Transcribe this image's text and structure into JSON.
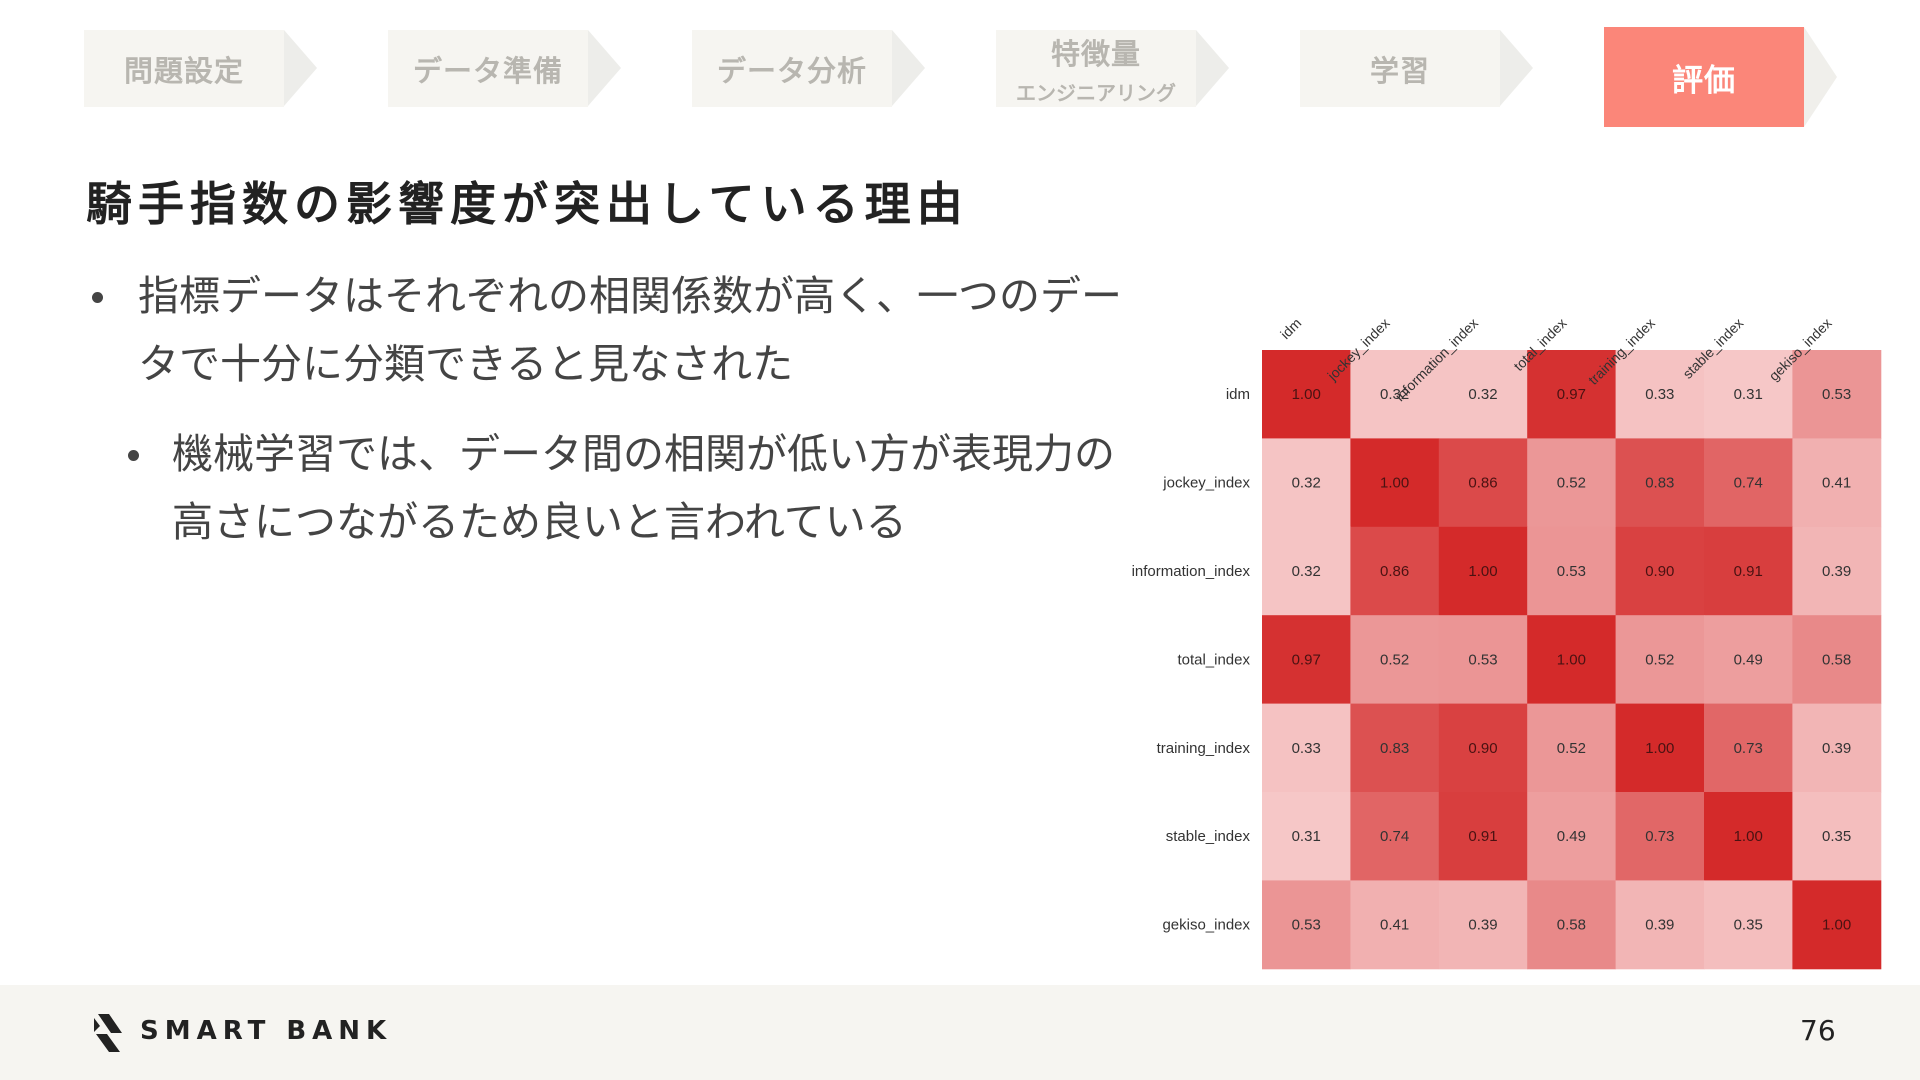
{
  "steps": [
    {
      "label": "問題設定",
      "sub": ""
    },
    {
      "label": "データ準備",
      "sub": ""
    },
    {
      "label": "データ分析",
      "sub": ""
    },
    {
      "label": "特徴量",
      "sub": "エンジニアリング"
    },
    {
      "label": "学習",
      "sub": ""
    },
    {
      "label": "評価",
      "sub": ""
    }
  ],
  "active_step": 5,
  "heading": "騎手指数の影響度が突出している理由",
  "bullets": {
    "level1": "指標データはそれぞれの相関係数が高く、一つのデータで十分に分類できると見なされた",
    "level2": "機械学習では、データ間の相関が低い方が表現力の高さにつながるため良いと言われている"
  },
  "chart_data": {
    "type": "heatmap",
    "labels": [
      "idm",
      "jockey_index",
      "information_index",
      "total_index",
      "training_index",
      "stable_index",
      "gekiso_index"
    ],
    "values": [
      [
        1.0,
        0.32,
        0.32,
        0.97,
        0.33,
        0.31,
        0.53
      ],
      [
        0.32,
        1.0,
        0.86,
        0.52,
        0.83,
        0.74,
        0.41
      ],
      [
        0.32,
        0.86,
        1.0,
        0.53,
        0.9,
        0.91,
        0.39
      ],
      [
        0.97,
        0.52,
        0.53,
        1.0,
        0.52,
        0.49,
        0.58
      ],
      [
        0.33,
        0.83,
        0.9,
        0.52,
        1.0,
        0.73,
        0.39
      ],
      [
        0.31,
        0.74,
        0.91,
        0.49,
        0.73,
        1.0,
        0.35
      ],
      [
        0.53,
        0.41,
        0.39,
        0.58,
        0.39,
        0.35,
        1.0
      ]
    ],
    "color_low": "#f6c9c9",
    "color_high": "#d42a2a"
  },
  "footer": {
    "brand": "SMART BANK",
    "page_number": "76"
  },
  "colors": {
    "accent": "#fb8679",
    "step_bg": "#f6f5f1",
    "footer_bg": "#f6f5f1"
  }
}
